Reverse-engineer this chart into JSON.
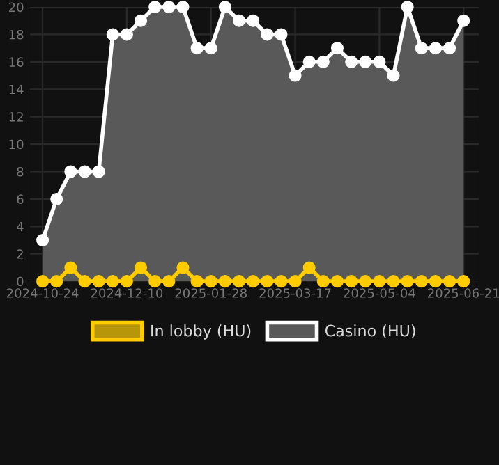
{
  "chart_data": {
    "type": "area",
    "categories": [
      "2024-10-24",
      null,
      null,
      null,
      null,
      null,
      "2024-12-10",
      null,
      null,
      null,
      null,
      null,
      "2025-01-28",
      null,
      null,
      null,
      null,
      null,
      "2025-03-17",
      null,
      null,
      null,
      null,
      null,
      "2025-05-04",
      null,
      null,
      null,
      null,
      null,
      "2025-06-21"
    ],
    "series": [
      {
        "name": "In lobby (HU)",
        "color": "#ffcc00",
        "values": [
          0,
          0,
          1,
          0,
          0,
          0,
          0,
          1,
          0,
          0,
          1,
          0,
          0,
          0,
          0,
          0,
          0,
          0,
          0,
          1,
          0,
          0,
          0,
          0,
          0,
          0,
          0,
          0,
          0,
          0,
          0
        ]
      },
      {
        "name": "Casino (HU)",
        "color": "#ffffff",
        "values": [
          3,
          6,
          8,
          8,
          8,
          18,
          18,
          19,
          20,
          20,
          20,
          17,
          17,
          20,
          19,
          19,
          18,
          18,
          15,
          16,
          16,
          17,
          16,
          16,
          16,
          15,
          20,
          17,
          17,
          17,
          19
        ]
      }
    ],
    "ylim": [
      0,
      20
    ],
    "yticks": [
      0,
      2,
      4,
      6,
      8,
      10,
      12,
      14,
      16,
      18,
      20
    ],
    "grid": true,
    "legend": "bottom",
    "marker": "circle",
    "line_style": "solid"
  }
}
